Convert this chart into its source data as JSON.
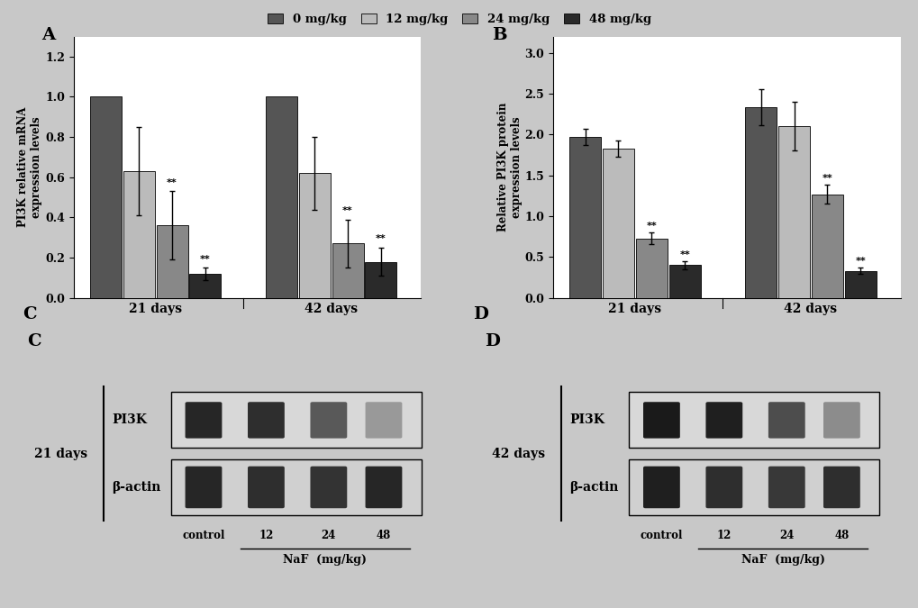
{
  "legend_labels": [
    "0 mg/kg",
    "12 mg/kg",
    "24 mg/kg",
    "48 mg/kg"
  ],
  "legend_colors": [
    "#555555",
    "#bbbbbb",
    "#888888",
    "#2a2a2a"
  ],
  "bar_colors": [
    "#555555",
    "#bbbbbb",
    "#888888",
    "#2a2a2a"
  ],
  "panel_A": {
    "title": "A",
    "ylabel": "PI3K relative mRNA\nexpression levels",
    "groups": [
      "21 days",
      "42 days"
    ],
    "values": [
      [
        1.0,
        0.63,
        0.36,
        0.12
      ],
      [
        1.0,
        0.62,
        0.27,
        0.18
      ]
    ],
    "errors": [
      [
        0.0,
        0.22,
        0.17,
        0.03
      ],
      [
        0.0,
        0.18,
        0.12,
        0.07
      ]
    ],
    "sig": [
      [
        false,
        false,
        true,
        true
      ],
      [
        false,
        false,
        true,
        true
      ]
    ],
    "ylim": [
      0,
      1.3
    ],
    "yticks": [
      0,
      0.2,
      0.4,
      0.6,
      0.8,
      1.0,
      1.2
    ]
  },
  "panel_B": {
    "title": "B",
    "ylabel": "Relative PI3K protein\nexpression levels",
    "groups": [
      "21 days",
      "42 days"
    ],
    "values": [
      [
        1.97,
        1.83,
        0.73,
        0.4
      ],
      [
        2.33,
        2.1,
        1.27,
        0.33
      ]
    ],
    "errors": [
      [
        0.1,
        0.1,
        0.07,
        0.05
      ],
      [
        0.22,
        0.3,
        0.12,
        0.04
      ]
    ],
    "sig": [
      [
        false,
        false,
        true,
        true
      ],
      [
        false,
        false,
        true,
        true
      ]
    ],
    "ylim": [
      0,
      3.2
    ],
    "yticks": [
      0,
      0.5,
      1.0,
      1.5,
      2.0,
      2.5,
      3.0
    ]
  },
  "fig_bg": "#c8c8c8",
  "plot_bg": "#ffffff",
  "panel_C": {
    "title": "C",
    "day_label": "21 days",
    "protein_label": "PI3K",
    "actin_label": "β-actin",
    "x_labels": [
      "control",
      "12",
      "24",
      "48"
    ],
    "naf_label": "NaF  (mg/kg)"
  },
  "panel_D": {
    "title": "D",
    "day_label": "42 days",
    "protein_label": "PI3K",
    "actin_label": "β-actin",
    "x_labels": [
      "control",
      "12",
      "24",
      "48"
    ],
    "naf_label": "NaF  (mg/kg)"
  }
}
